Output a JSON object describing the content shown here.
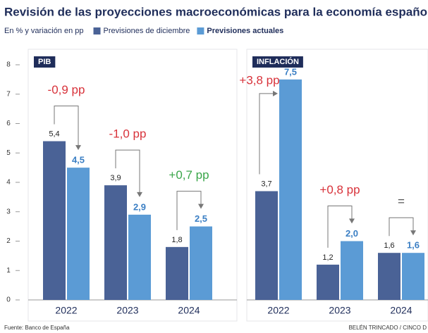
{
  "header": {
    "title": "Revisión de las proyecciones macroeconómicas para la economía española",
    "subtitle": "En % y variación en pp"
  },
  "chart_data": [
    {
      "type": "bar",
      "title": "PIB",
      "categories": [
        "2022",
        "2023",
        "2024"
      ],
      "series": [
        {
          "name": "Previsiones de diciembre",
          "color": "#4a6296",
          "values": [
            5.4,
            3.9,
            1.8
          ],
          "value_labels": [
            "5,4",
            "3,9",
            "1,8"
          ]
        },
        {
          "name": "Previsiones actuales",
          "color": "#5b9bd5",
          "values": [
            4.5,
            2.9,
            2.5
          ],
          "value_labels": [
            "4,5",
            "2,9",
            "2,5"
          ]
        }
      ],
      "annotations": [
        {
          "text": "-0,9 pp",
          "color": "#d8323a"
        },
        {
          "text": "-1,0 pp",
          "color": "#d8323a"
        },
        {
          "text": "+0,7 pp",
          "color": "#3aa64a"
        }
      ],
      "ylim": [
        0,
        8
      ],
      "yticks": [
        0,
        1,
        2,
        3,
        4,
        5,
        6,
        7,
        8
      ]
    },
    {
      "type": "bar",
      "title": "INFLACIÓN",
      "categories": [
        "2022",
        "2023",
        "2024"
      ],
      "series": [
        {
          "color": "#4a6296",
          "values": [
            3.7,
            1.2,
            1.6
          ],
          "value_labels": [
            "3,7",
            "1,2",
            "1,6"
          ]
        },
        {
          "color": "#5b9bd5",
          "values": [
            7.5,
            2.0,
            1.6
          ],
          "value_labels": [
            "7,5",
            "2,0",
            "1,6"
          ]
        }
      ],
      "annotations": [
        {
          "text": "+3,8 pp",
          "color": "#d8323a"
        },
        {
          "text": "+0,8 pp",
          "color": "#d8323a"
        },
        {
          "text": "=",
          "color": "#555555"
        }
      ],
      "ylim": [
        0,
        8
      ]
    }
  ],
  "footer": {
    "source": "Fuente: Banco de España",
    "credit": "BELÉN TRINCADO / CINCO D"
  }
}
